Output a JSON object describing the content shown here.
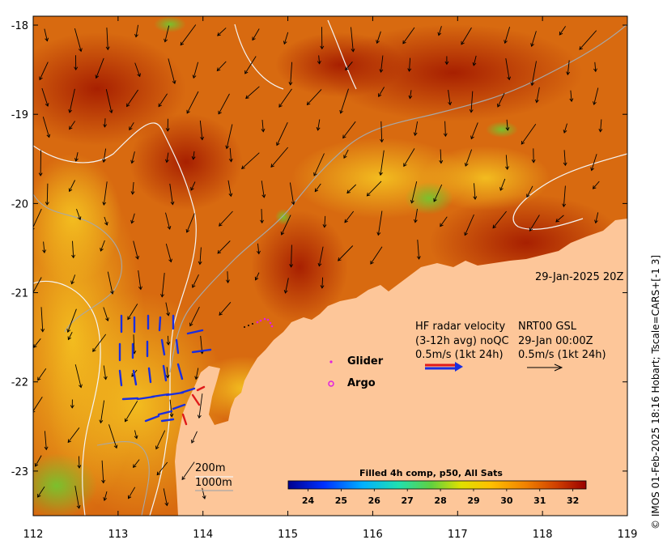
{
  "date_label": "29-Jan-2025 20Z",
  "hf_radar": {
    "line1": "HF radar velocity",
    "line2": "(3-12h avg) noQC",
    "line3": "0.5m/s (1kt 24h)"
  },
  "nrt": {
    "line1": "NRT00 GSL",
    "line2": "29-Jan 00:00Z",
    "line3": "0.5m/s (1kt 24h)"
  },
  "legend": {
    "glider": "Glider",
    "argo": "Argo",
    "glider_color": "#e020e0",
    "argo_color": "#e020e0"
  },
  "isobaths": {
    "shallow": "200m",
    "deep": "1000m"
  },
  "colorbar": {
    "title": "Filled 4h comp, p50, All Sats",
    "ticks": [
      "24",
      "25",
      "26",
      "27",
      "28",
      "29",
      "30",
      "31",
      "32"
    ],
    "range": [
      23.4,
      32.4
    ]
  },
  "axes": {
    "x_ticks": [
      "112",
      "113",
      "114",
      "115",
      "116",
      "117",
      "118",
      "119"
    ],
    "y_ticks": [
      "-18",
      "-19",
      "-20",
      "-21",
      "-22",
      "-23"
    ],
    "lon_range": [
      112,
      119
    ],
    "lat_range": [
      -23.5,
      -17.9
    ]
  },
  "credit": "© IMOS 01-Feb-2025 18:16 Hobart; Tscale=CARS+[-1 3]",
  "colors": {
    "land": "#fdc699",
    "sst_cool": "#f2b21a",
    "sst_warm": "#b52a00",
    "radar_arrow": "#1a2ee0",
    "radar_arrow_red": "#e01a1a"
  }
}
